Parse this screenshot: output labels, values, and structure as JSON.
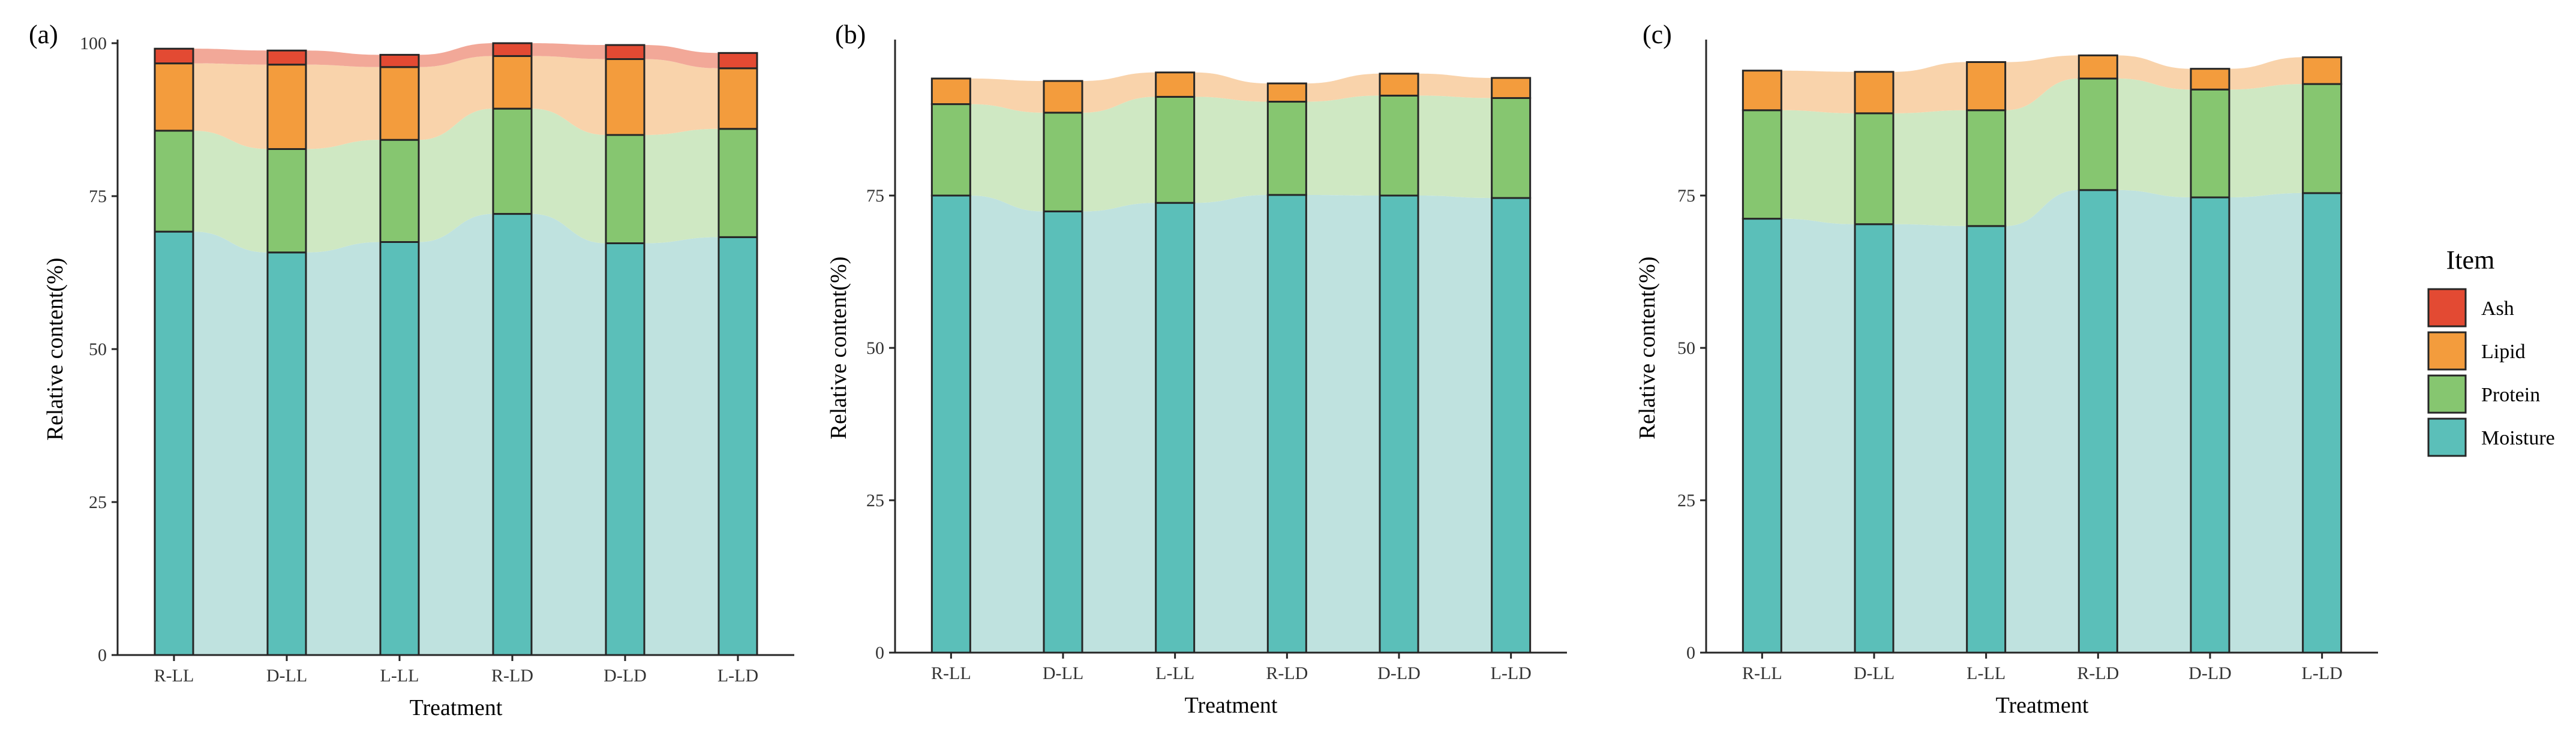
{
  "figure": {
    "legend": {
      "title": "Item",
      "items": [
        {
          "name": "Ash",
          "color": "#e34a33"
        },
        {
          "name": "Lipid",
          "color": "#f39c3d"
        },
        {
          "name": "Protein",
          "color": "#86c670"
        },
        {
          "name": "Moisture",
          "color": "#5bbfb9"
        }
      ]
    },
    "layer_colors": {
      "Moisture": "#bfe2df",
      "Protein": "#cfe8c3",
      "Lipid": "#f9d3ab",
      "Ash": "#f2a898"
    }
  },
  "chart_data": [
    {
      "type": "bar",
      "stacked": true,
      "panel_label": "(a)",
      "categories": [
        "R-LL",
        "D-LL",
        "L-LL",
        "R-LD",
        "D-LD",
        "L-LD"
      ],
      "series": [
        {
          "name": "Moisture",
          "values": [
            69.2,
            65.8,
            67.5,
            72.1,
            67.3,
            68.3
          ]
        },
        {
          "name": "Protein",
          "values": [
            16.5,
            16.9,
            16.7,
            17.2,
            17.7,
            17.7
          ]
        },
        {
          "name": "Lipid",
          "values": [
            11.0,
            13.8,
            11.9,
            8.6,
            12.4,
            9.9
          ]
        },
        {
          "name": "Ash",
          "values": [
            2.4,
            2.3,
            2.0,
            2.1,
            2.3,
            2.5
          ]
        }
      ],
      "xlabel": "Treatment",
      "ylabel": "Relative content(%)",
      "ylim": [
        0,
        100
      ],
      "yticks": [
        0,
        25,
        50,
        75,
        100
      ],
      "ytick_labels": [
        "0",
        "25",
        "50",
        "75",
        "100"
      ],
      "legend": "right"
    },
    {
      "type": "bar",
      "stacked": true,
      "panel_label": "(b)",
      "categories": [
        "R-LL",
        "D-LL",
        "L-LL",
        "R-LD",
        "D-LD",
        "L-LD"
      ],
      "series": [
        {
          "name": "Moisture",
          "values": [
            75.0,
            72.4,
            73.8,
            75.1,
            75.0,
            74.6
          ]
        },
        {
          "name": "Protein",
          "values": [
            15.0,
            16.2,
            17.4,
            15.3,
            16.4,
            16.4
          ]
        },
        {
          "name": "Lipid",
          "values": [
            4.2,
            5.2,
            4.0,
            3.0,
            3.6,
            3.3
          ]
        }
      ],
      "xlabel": "Treatment",
      "ylabel": "Relative content(%)",
      "ylim": [
        0,
        100
      ],
      "yticks": [
        0,
        25,
        50,
        75
      ],
      "ytick_labels": [
        "0",
        "25",
        "50",
        "75"
      ],
      "legend": "right"
    },
    {
      "type": "bar",
      "stacked": true,
      "panel_label": "(c)",
      "categories": [
        "R-LL",
        "D-LL",
        "L-LL",
        "R-LD",
        "D-LD",
        "L-LD"
      ],
      "series": [
        {
          "name": "Moisture",
          "values": [
            71.2,
            70.3,
            70.0,
            75.9,
            74.7,
            75.4
          ]
        },
        {
          "name": "Protein",
          "values": [
            17.8,
            18.2,
            19.0,
            18.3,
            17.7,
            17.9
          ]
        },
        {
          "name": "Lipid",
          "values": [
            6.5,
            6.8,
            7.9,
            3.8,
            3.4,
            4.4
          ]
        }
      ],
      "xlabel": "Treatment",
      "ylabel": "Relative content(%)",
      "ylim": [
        0,
        100
      ],
      "yticks": [
        0,
        25,
        50,
        75
      ],
      "ytick_labels": [
        "0",
        "25",
        "50",
        "75"
      ],
      "legend": "right"
    }
  ]
}
